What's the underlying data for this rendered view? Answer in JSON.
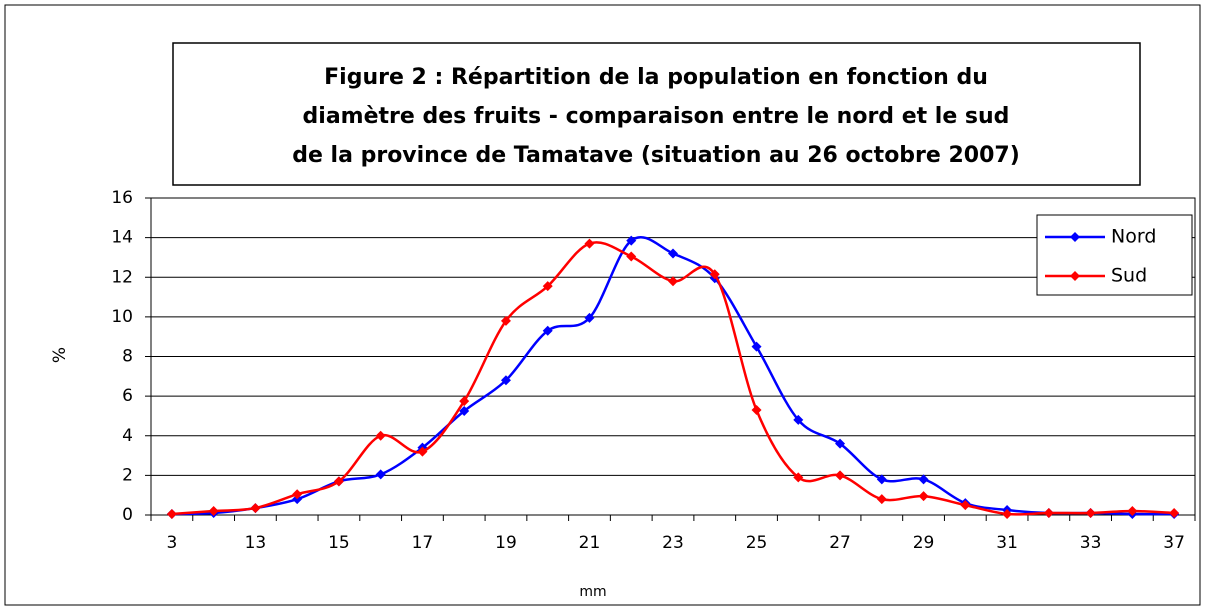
{
  "chart_data": {
    "type": "line",
    "title": [
      "Figure 2 : Répartition de la population en fonction du",
      "diamètre des fruits - comparaison entre le nord et le sud",
      "de la province de Tamatave (situation au 26 octobre 2007)"
    ],
    "x_label": "mm",
    "y_label": "%",
    "categories": [
      "3",
      null,
      "13",
      null,
      "15",
      null,
      "17",
      null,
      "19",
      null,
      "21",
      null,
      "23",
      null,
      "25",
      null,
      "27",
      null,
      "29",
      null,
      "31",
      null,
      "33",
      null,
      "37"
    ],
    "series": [
      {
        "name": "Nord",
        "color": "#0000ff",
        "values": [
          0.05,
          0.1,
          0.35,
          0.8,
          1.7,
          2.05,
          3.4,
          5.25,
          6.8,
          9.3,
          9.95,
          13.85,
          13.2,
          11.95,
          8.5,
          4.8,
          3.6,
          1.8,
          1.8,
          0.6,
          0.25,
          0.1,
          0.1,
          0.05,
          0.05
        ]
      },
      {
        "name": "Sud",
        "color": "#ff0000",
        "values": [
          0.05,
          0.2,
          0.35,
          1.05,
          1.7,
          4.0,
          3.2,
          5.75,
          9.8,
          11.55,
          13.7,
          13.05,
          11.8,
          12.15,
          5.3,
          1.9,
          2.0,
          0.8,
          0.95,
          0.5,
          0.05,
          0.1,
          0.1,
          0.2,
          0.1
        ]
      }
    ],
    "ylim": [
      0,
      16
    ],
    "yticks": [
      0,
      2,
      4,
      6,
      8,
      10,
      12,
      14,
      16
    ],
    "grid": true,
    "legend": "upper right"
  }
}
